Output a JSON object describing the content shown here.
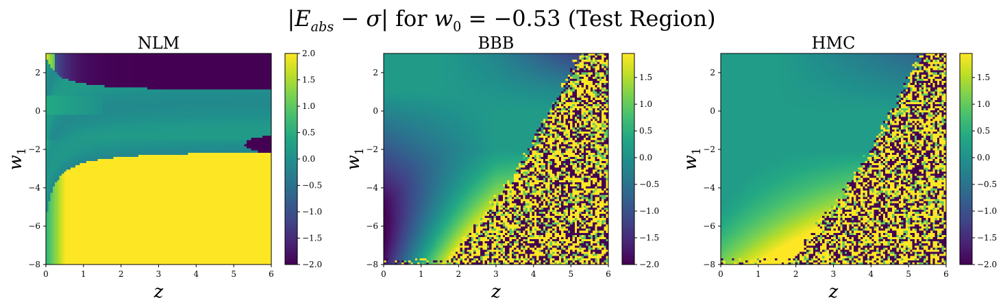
{
  "figure": {
    "suptitle": "|E_abs − σ| for w_0 = −0.53 (Test Region)"
  },
  "chart_data": [
    {
      "type": "heatmap",
      "title": "NLM",
      "xlabel": "z",
      "ylabel": "w_1",
      "xlim": [
        0,
        6
      ],
      "ylim": [
        -8,
        3
      ],
      "xticks": [
        0,
        1,
        2,
        3,
        4,
        5,
        6
      ],
      "yticks": [
        -8,
        -6,
        -4,
        -2,
        0,
        2
      ],
      "colormap": "viridis",
      "colorbar": {
        "vmin": -2.0,
        "vmax": 2.0,
        "ticks": [
          -2.0,
          -1.5,
          -1.0,
          -0.5,
          0.0,
          0.5,
          1.0,
          1.5,
          2.0
        ]
      },
      "pattern": "nlm",
      "grid_resolution": [
        100,
        100
      ]
    },
    {
      "type": "heatmap",
      "title": "BBB",
      "xlabel": "z",
      "ylabel": "w_1",
      "xlim": [
        0,
        6
      ],
      "ylim": [
        -8,
        3
      ],
      "xticks": [
        0,
        1,
        2,
        3,
        4,
        5,
        6
      ],
      "yticks": [
        -8,
        -6,
        -4,
        -2,
        0,
        2
      ],
      "colormap": "viridis",
      "colorbar": {
        "vmin": -2.0,
        "vmax": 1.95,
        "ticks": [
          -2.0,
          -1.5,
          -1.0,
          -0.5,
          0.0,
          0.5,
          1.0,
          1.5
        ]
      },
      "pattern": "bbb",
      "grid_resolution": [
        100,
        100
      ]
    },
    {
      "type": "heatmap",
      "title": "HMC",
      "xlabel": "z",
      "ylabel": "w_1",
      "xlim": [
        0,
        6
      ],
      "ylim": [
        -8,
        3
      ],
      "xticks": [
        0,
        1,
        2,
        3,
        4,
        5,
        6
      ],
      "yticks": [
        -8,
        -6,
        -4,
        -2,
        0,
        2
      ],
      "colormap": "viridis",
      "colorbar": {
        "vmin": -2.0,
        "vmax": 1.95,
        "ticks": [
          -2.0,
          -1.5,
          -1.0,
          -0.5,
          0.0,
          0.5,
          1.0,
          1.5
        ]
      },
      "pattern": "hmc",
      "grid_resolution": [
        100,
        100
      ]
    }
  ]
}
